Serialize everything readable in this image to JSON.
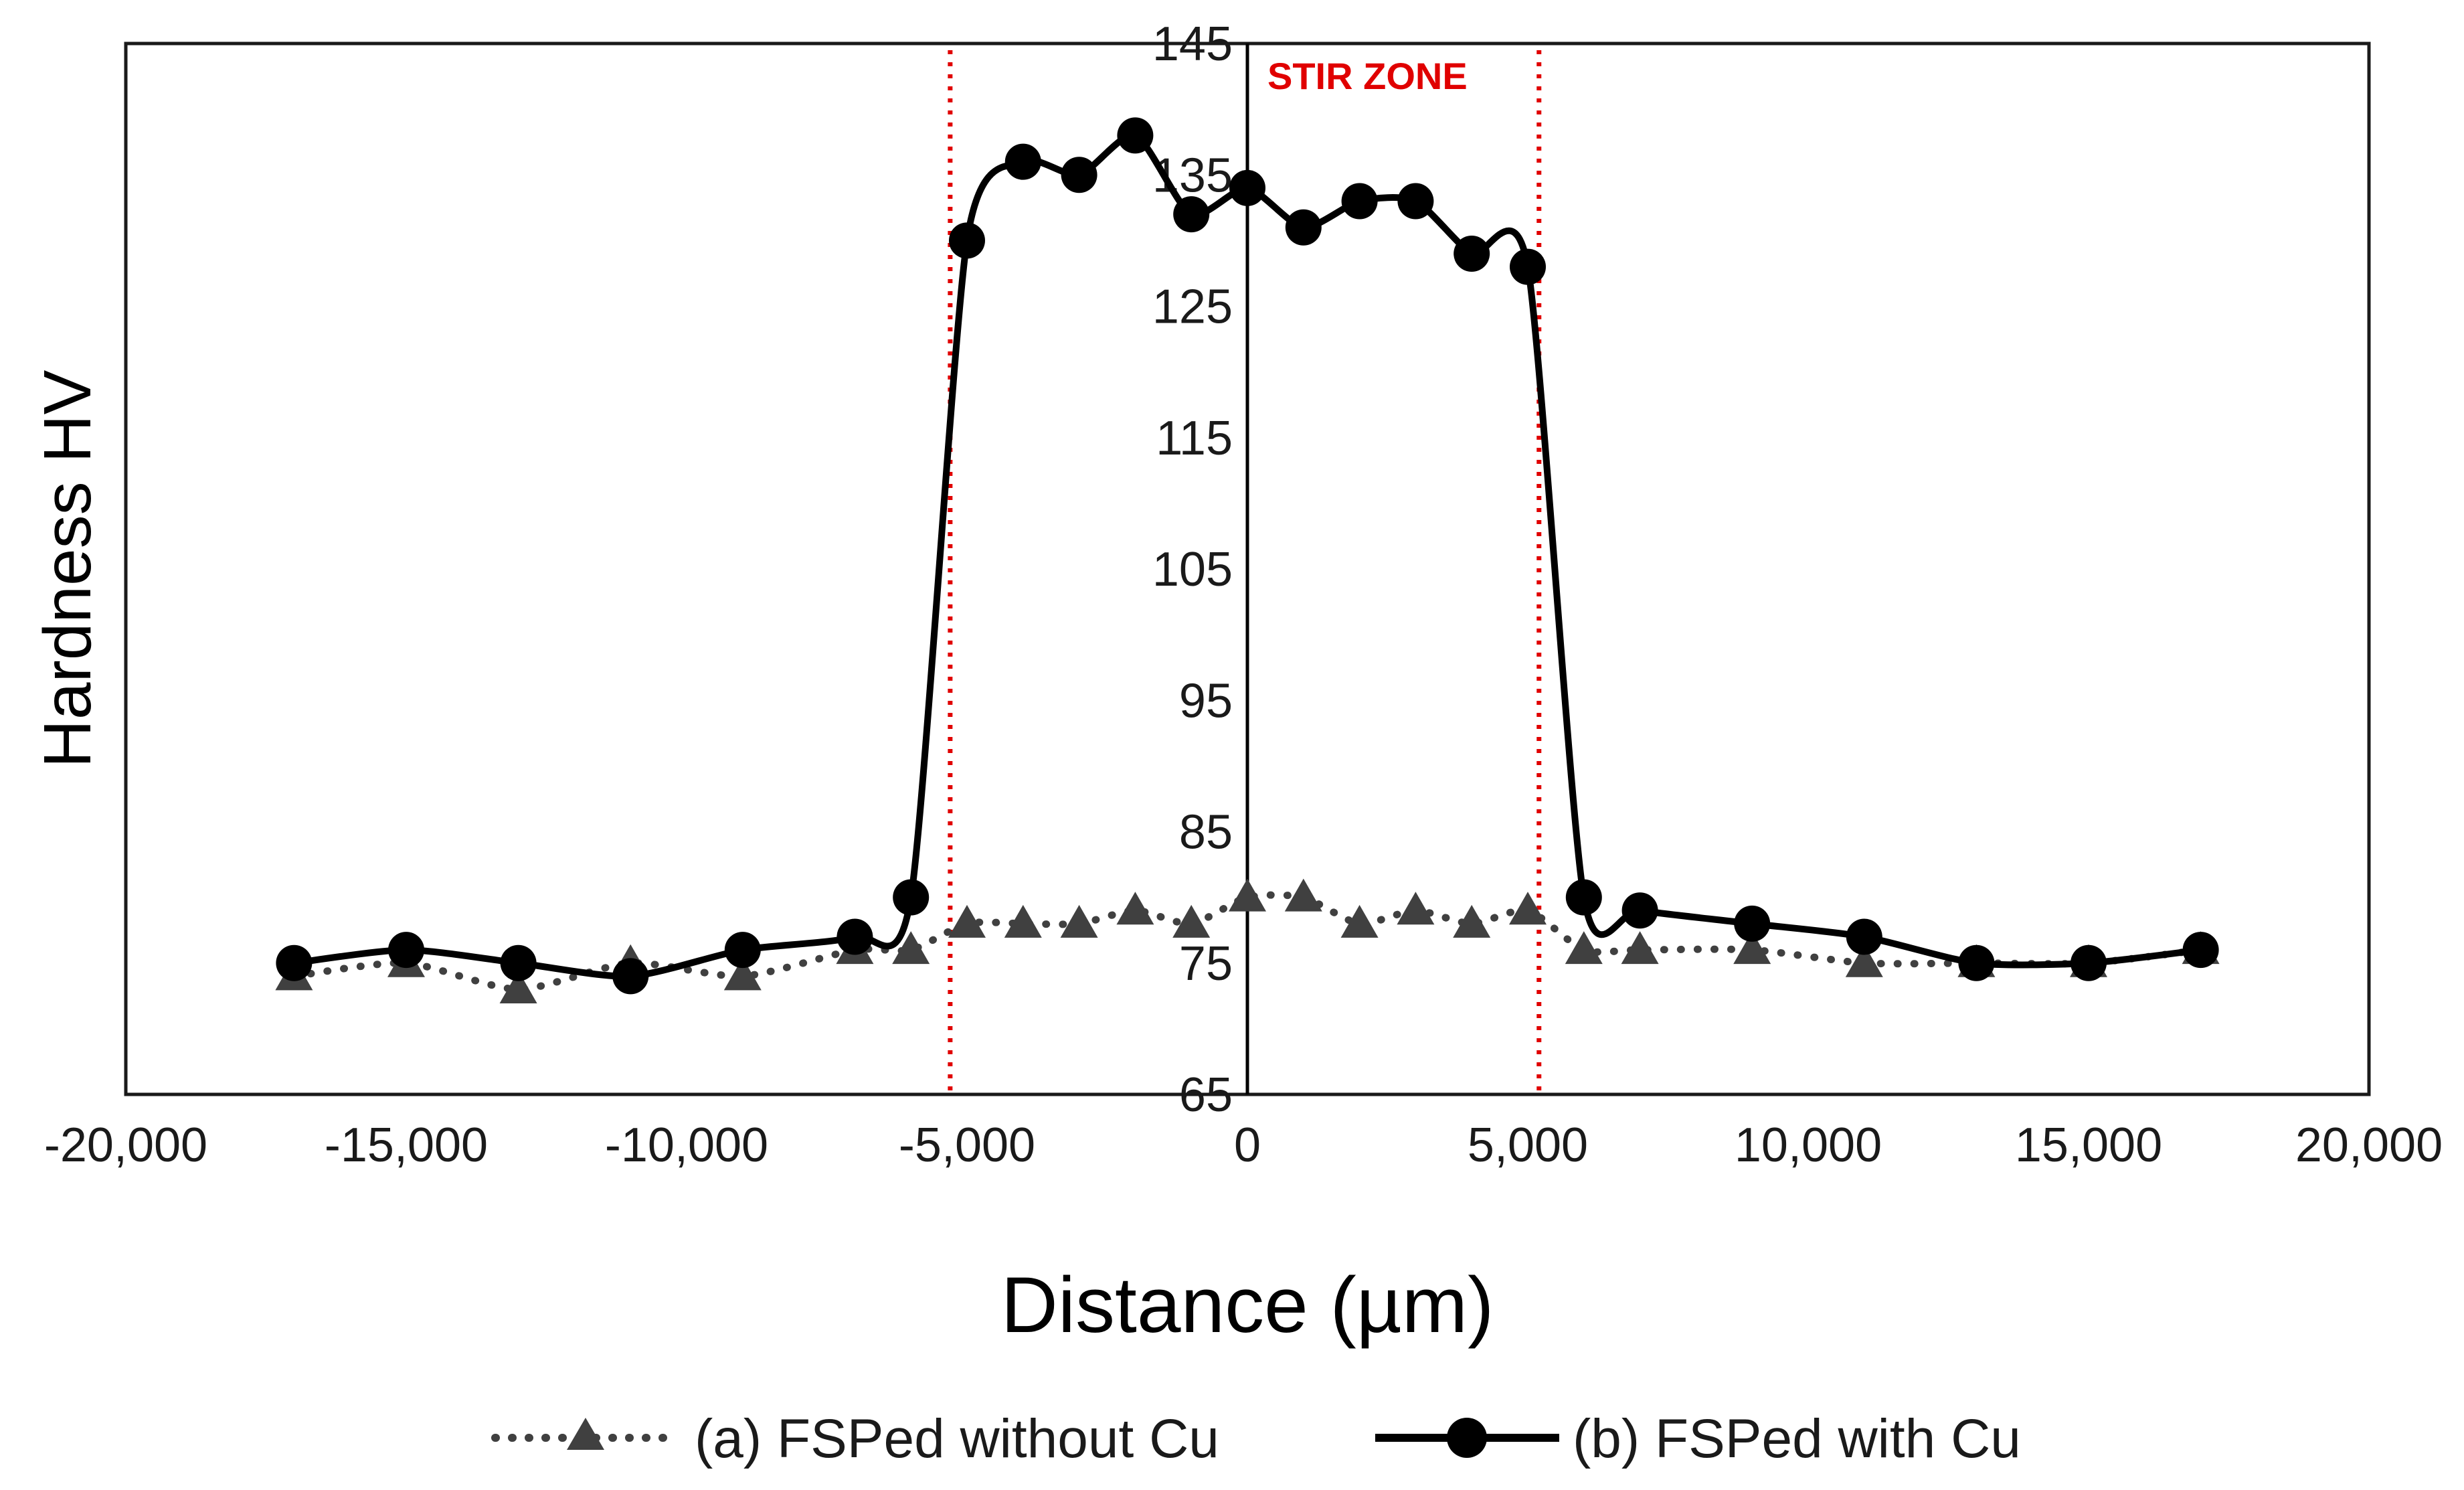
{
  "chart_data": {
    "type": "line",
    "title": "",
    "xlabel": "Distance (µm)",
    "ylabel": "Hardness  HV",
    "xlim": [
      -20000,
      20000
    ],
    "ylim": [
      65,
      145
    ],
    "x_ticks": [
      -20000,
      -15000,
      -10000,
      -5000,
      0,
      5000,
      10000,
      15000,
      20000
    ],
    "x_tick_labels": [
      "-20,000",
      "-15,000",
      "-10,000",
      "-5,000",
      "0",
      "5,000",
      "10,000",
      "15,000",
      "20,000"
    ],
    "y_ticks": [
      65,
      75,
      85,
      95,
      105,
      115,
      125,
      135,
      145
    ],
    "y_tick_labels": [
      "65",
      "75",
      "85",
      "95",
      "105",
      "115",
      "125",
      "135",
      "145"
    ],
    "grid": false,
    "legend_position": "bottom",
    "series": [
      {
        "name": "(a) FSPed without Cu",
        "line_style": "dotted",
        "marker": "triangle",
        "color": "#404040",
        "x": [
          -17000,
          -15000,
          -13000,
          -11000,
          -9000,
          -7000,
          -6000,
          -5000,
          -4000,
          -3000,
          -2000,
          -1000,
          0,
          1000,
          2000,
          3000,
          4000,
          5000,
          6000,
          7000,
          9000,
          11000,
          13000,
          15000,
          17000
        ],
        "y": [
          74,
          75,
          73,
          75,
          74,
          76,
          76,
          78,
          78,
          78,
          79,
          78,
          80,
          80,
          78,
          79,
          78,
          79,
          76,
          76,
          76,
          75,
          75,
          75,
          76
        ]
      },
      {
        "name": "(b) FSPed with Cu",
        "line_style": "solid",
        "marker": "circle",
        "color": "#000000",
        "x": [
          -17000,
          -15000,
          -13000,
          -11000,
          -9000,
          -7000,
          -6000,
          -5000,
          -4000,
          -3000,
          -2000,
          -1000,
          0,
          1000,
          2000,
          3000,
          4000,
          5000,
          6000,
          7000,
          9000,
          11000,
          13000,
          15000,
          17000
        ],
        "y": [
          75,
          76,
          75,
          74,
          76,
          77,
          80,
          130,
          136,
          135,
          138,
          132,
          134,
          131,
          133,
          133,
          129,
          128,
          80,
          79,
          78,
          77,
          75,
          75,
          76
        ]
      }
    ],
    "annotations": [
      {
        "type": "vline",
        "x": -5300,
        "color": "#e00000",
        "style": "dotted"
      },
      {
        "type": "vline",
        "x": 5200,
        "color": "#e00000",
        "style": "dotted"
      },
      {
        "type": "text",
        "text": "STIR ZONE",
        "color": "#e00000",
        "anchor_x": 0
      }
    ]
  }
}
